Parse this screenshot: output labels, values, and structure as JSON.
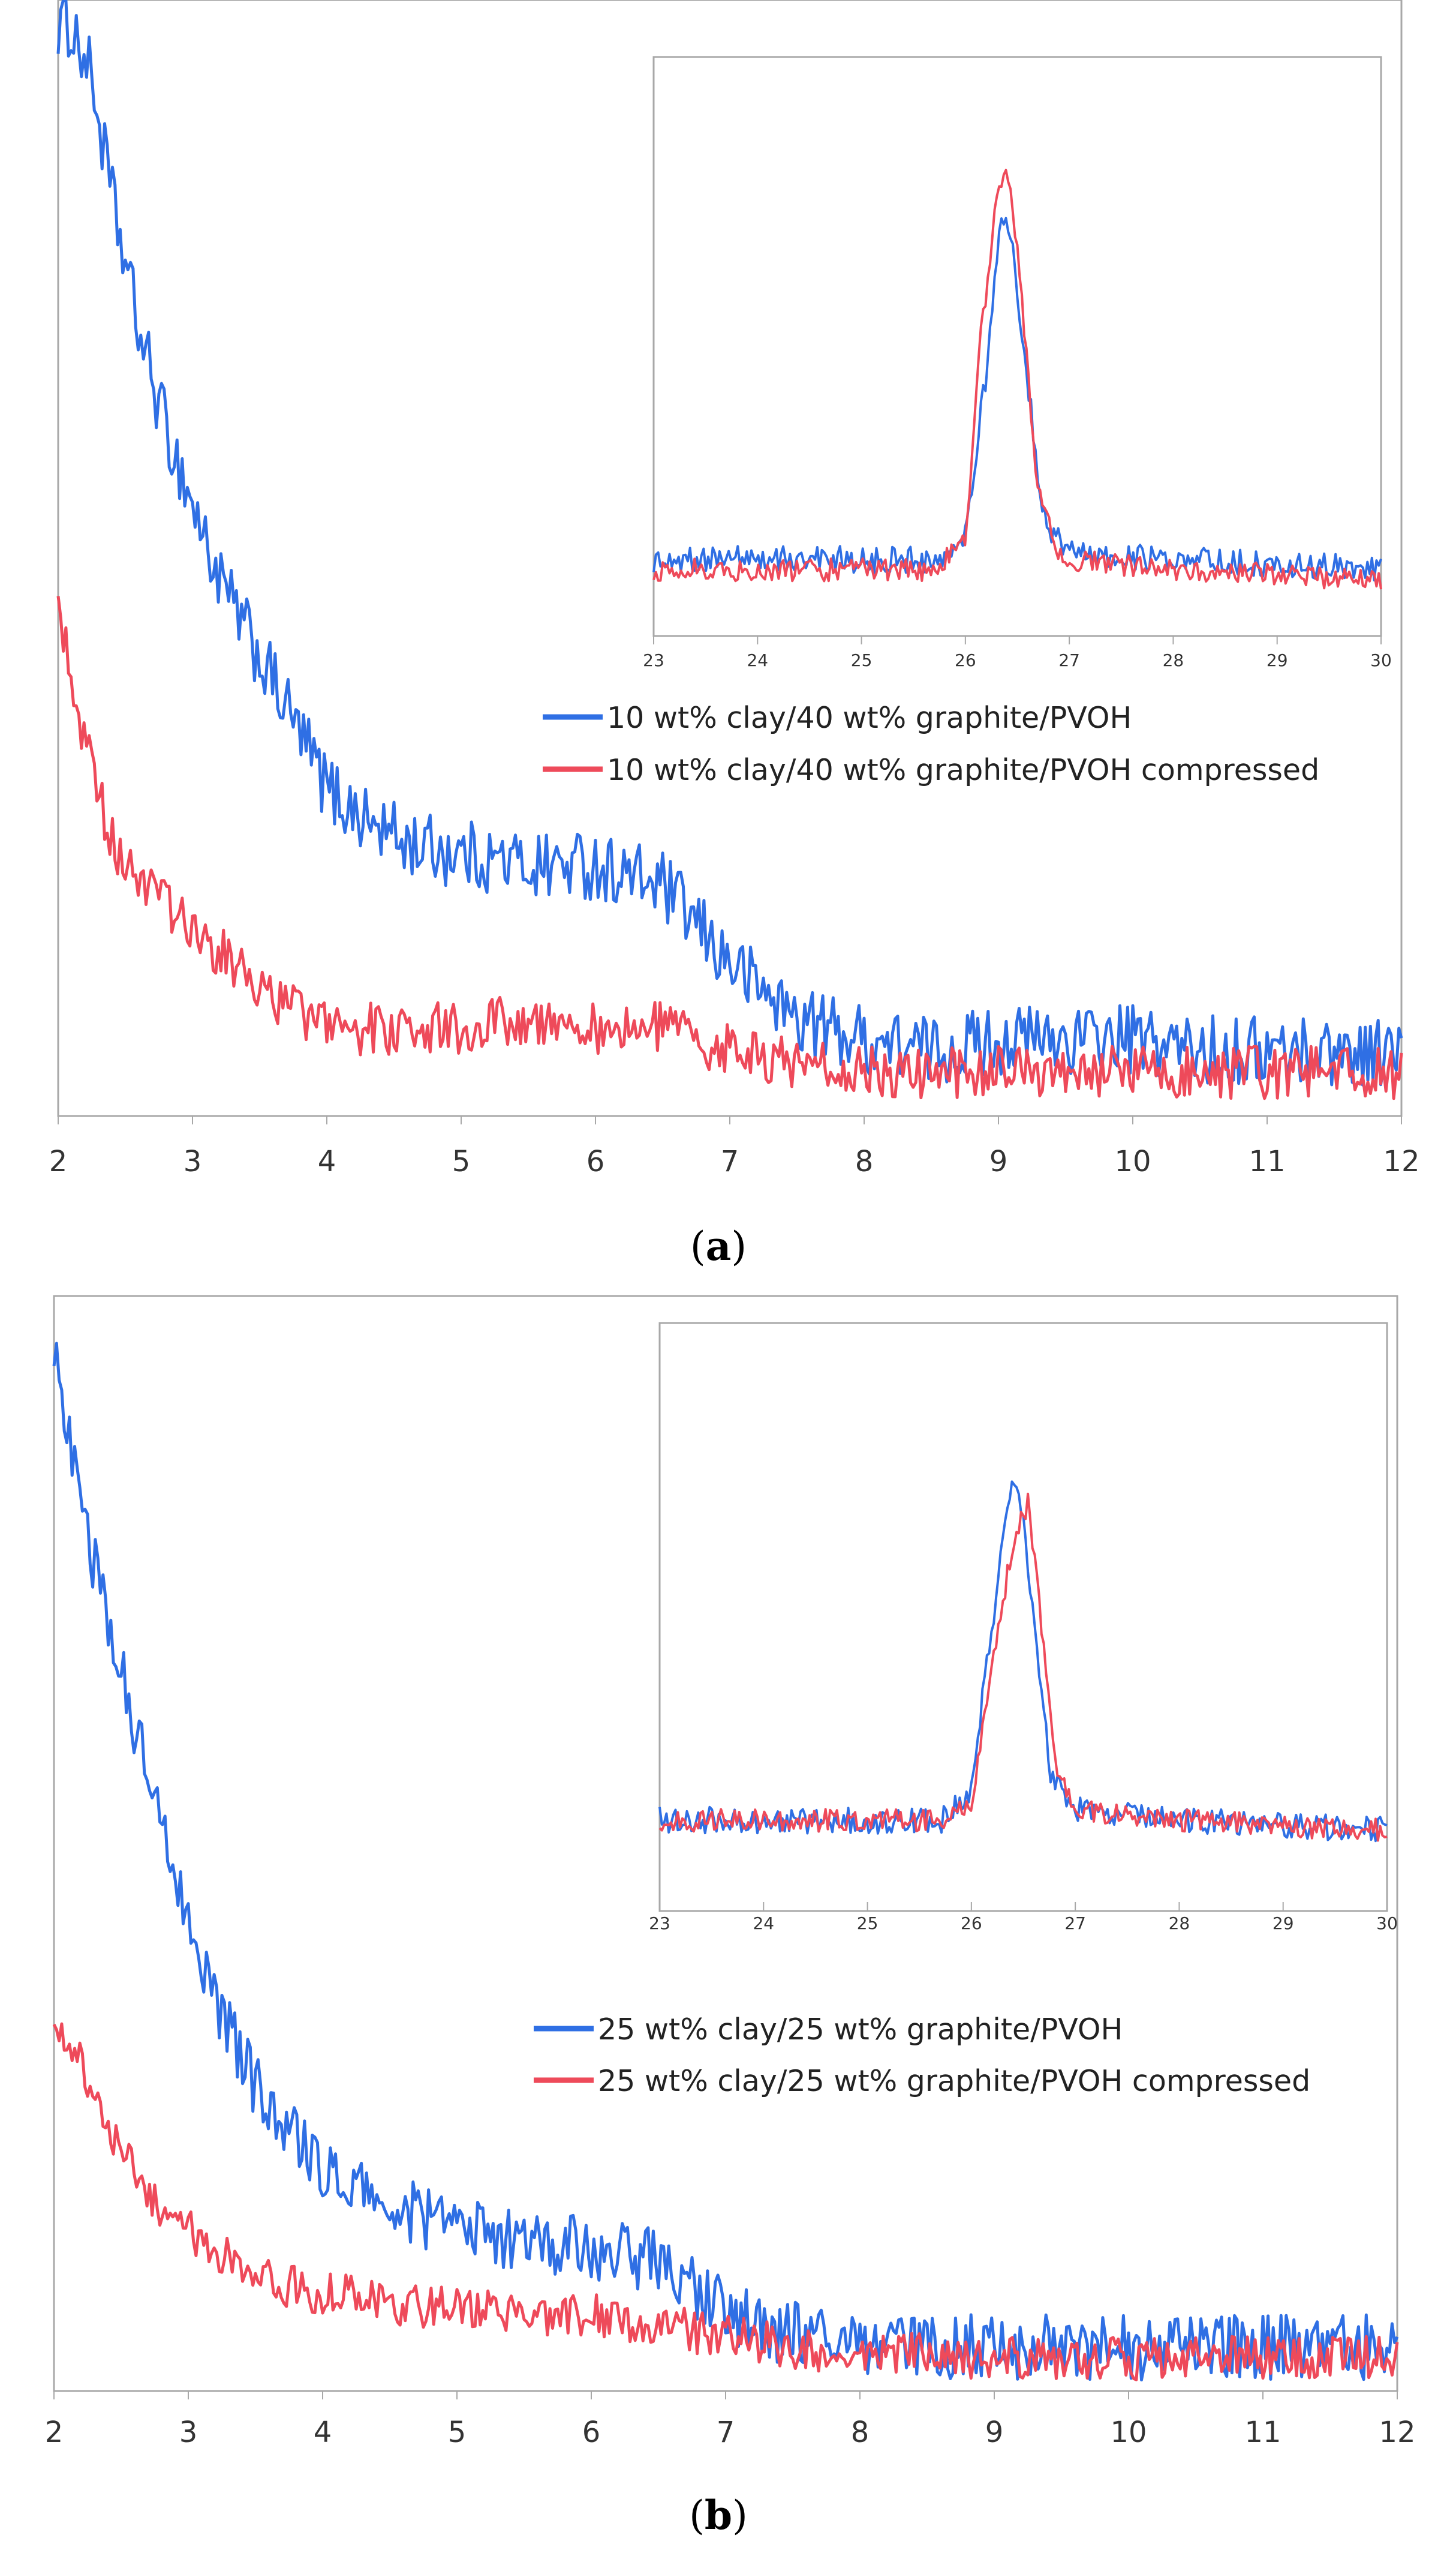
{
  "figure": {
    "colors": {
      "blue": "#2f6fe4",
      "red": "#ee4a5a",
      "axis": "#a8a8a8"
    }
  },
  "chart_data": [
    {
      "type": "line",
      "panel": "a",
      "caption": {
        "open": "(",
        "letter": "a",
        "close": ")"
      },
      "xlabel": "",
      "ylabel": "",
      "xlim": [
        2,
        12
      ],
      "xticks": [
        "2",
        "3",
        "4",
        "5",
        "6",
        "7",
        "8",
        "9",
        "10",
        "11",
        "12"
      ],
      "ylim": [
        0,
        100
      ],
      "grid": false,
      "legend": {
        "position": "middle-right"
      },
      "series": [
        {
          "name": "10 wt% clay/40 wt% graphite/PVOH",
          "color": "#2f6fe4",
          "x": [
            2.1,
            2.25,
            2.4,
            2.6,
            2.8,
            3.0,
            3.2,
            3.5,
            3.8,
            4.0,
            4.3,
            4.6,
            5.0,
            5.5,
            6.0,
            6.5,
            7.0,
            7.5,
            8.0,
            8.5,
            9.0,
            9.5,
            10.0,
            10.5,
            11.0,
            11.5,
            12.0
          ],
          "y": [
            100,
            95,
            84,
            72,
            63,
            56,
            49,
            42,
            35,
            30,
            27,
            25,
            24,
            23,
            23,
            21,
            14,
            9,
            7,
            6,
            7,
            7,
            7,
            6,
            6,
            6,
            6
          ],
          "noise": 3.2
        },
        {
          "name": "10 wt% clay/40 wt% graphite/PVOH compressed",
          "color": "#ee4a5a",
          "x": [
            2.0,
            2.2,
            2.4,
            2.6,
            2.8,
            3.0,
            3.3,
            3.6,
            4.0,
            4.5,
            5.0,
            5.5,
            6.0,
            6.5,
            7.0,
            7.5,
            8.0,
            8.5,
            9.0,
            9.5,
            10.0,
            11.0,
            12.0
          ],
          "y": [
            47,
            34,
            25,
            22,
            19,
            17,
            14,
            11,
            8,
            8,
            8,
            9,
            8,
            8,
            6,
            5,
            4,
            4,
            4,
            4,
            4,
            4,
            4
          ],
          "noise": 2.4
        }
      ],
      "inset": {
        "xlim": [
          23,
          30
        ],
        "xticks": [
          "23",
          "24",
          "25",
          "26",
          "27",
          "28",
          "29",
          "30"
        ],
        "ylim": [
          0,
          100
        ],
        "series": [
          {
            "name": "10 wt% clay/40 wt% graphite/PVOH",
            "color": "#2f6fe4",
            "x": [
              23.0,
              25.7,
              26.0,
              26.2,
              26.35,
              26.45,
              26.6,
              26.75,
              27.0,
              28.0,
              29.0,
              30.0
            ],
            "y": [
              9,
              9,
              14,
              45,
              76,
              70,
              44,
              17,
              10,
              9,
              8,
              7
            ],
            "noise": 2.6
          },
          {
            "name": "10 wt% clay/40 wt% graphite/PVOH compressed",
            "color": "#ee4a5a",
            "x": [
              23.0,
              25.7,
              26.0,
              26.15,
              26.3,
              26.42,
              26.55,
              26.7,
              26.9,
              28.0,
              29.0,
              30.0
            ],
            "y": [
              7,
              7,
              13,
              52,
              79,
              84,
              58,
              22,
              9,
              7,
              6,
              5
            ],
            "noise": 2.2
          }
        ]
      }
    },
    {
      "type": "line",
      "panel": "b",
      "caption": {
        "open": "(",
        "letter": "b",
        "close": ")"
      },
      "xlabel": "",
      "ylabel": "",
      "xlim": [
        2,
        12
      ],
      "xticks": [
        "2",
        "3",
        "4",
        "5",
        "6",
        "7",
        "8",
        "9",
        "10",
        "11",
        "12"
      ],
      "ylim": [
        0,
        100
      ],
      "grid": false,
      "legend": {
        "position": "middle-right"
      },
      "series": [
        {
          "name": "25 wt% clay/25 wt% graphite/PVOH",
          "color": "#2f6fe4",
          "x": [
            2.0,
            2.15,
            2.3,
            2.5,
            2.7,
            2.9,
            3.1,
            3.3,
            3.5,
            3.8,
            4.0,
            4.5,
            5.0,
            5.5,
            6.0,
            6.5,
            6.8,
            7.2,
            7.6,
            8.0,
            8.5,
            9.0,
            9.5,
            10.0,
            11.0,
            12.0
          ],
          "y": [
            95,
            86,
            76,
            66,
            56,
            48,
            40,
            33,
            28,
            23,
            20,
            17,
            15,
            14,
            13,
            12,
            9,
            6,
            5,
            4,
            4,
            4,
            4,
            4,
            4,
            4
          ],
          "noise": 3.0
        },
        {
          "name": "25 wt% clay/25 wt% graphite/PVOH compressed",
          "color": "#ee4a5a",
          "x": [
            2.0,
            2.2,
            2.4,
            2.7,
            3.0,
            3.3,
            3.6,
            4.0,
            4.5,
            5.0,
            5.5,
            6.0,
            6.5,
            7.0,
            7.5,
            8.0,
            9.0,
            10.0,
            11.0,
            12.0
          ],
          "y": [
            33,
            30,
            24,
            18,
            15,
            12,
            10,
            9,
            8,
            7.5,
            7,
            7,
            6,
            5,
            4,
            3.5,
            3,
            3,
            3,
            3
          ],
          "noise": 2.0
        }
      ],
      "inset": {
        "xlim": [
          23,
          30
        ],
        "xticks": [
          "23",
          "24",
          "25",
          "26",
          "27",
          "28",
          "29",
          "30"
        ],
        "ylim": [
          0,
          100
        ],
        "series": [
          {
            "name": "25 wt% clay/25 wt% graphite/PVOH",
            "color": "#2f6fe4",
            "x": [
              23.0,
              25.7,
              26.0,
              26.2,
              26.35,
              26.45,
              26.6,
              26.75,
              27.0,
              28.0,
              29.0,
              30.0
            ],
            "y": [
              10,
              10,
              16,
              48,
              72,
              76,
              50,
              20,
              12,
              10,
              9,
              8
            ],
            "noise": 2.6
          },
          {
            "name": "25 wt% clay/25 wt% graphite/PVOH compressed",
            "color": "#ee4a5a",
            "x": [
              23.0,
              25.7,
              26.0,
              26.2,
              26.4,
              26.55,
              26.65,
              26.8,
              27.0,
              28.0,
              29.0,
              30.0
            ],
            "y": [
              10,
              10,
              14,
              40,
              64,
              72,
              52,
              22,
              12,
              10,
              9,
              8
            ],
            "noise": 2.2
          }
        ]
      }
    }
  ]
}
